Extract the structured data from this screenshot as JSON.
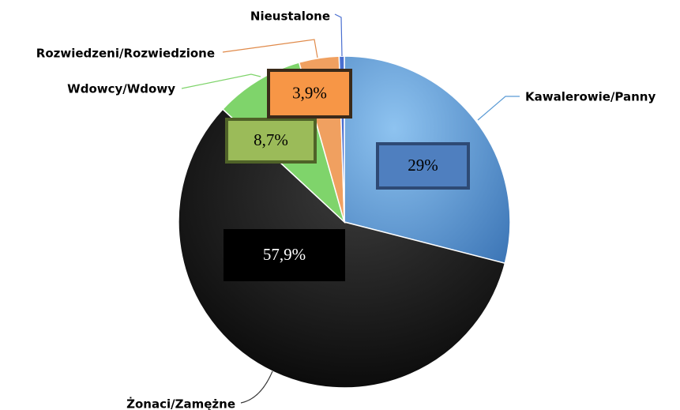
{
  "chart_data": {
    "type": "pie",
    "categories": [
      "Kawalerowie/Panny",
      "Żonaci/Zamężne",
      "Wdowcy/Wdowy",
      "Rozwiedzeni/Rozwiedzione",
      "Nieustalone"
    ],
    "values": [
      29,
      57.9,
      8.7,
      3.9,
      0.5
    ],
    "value_labels": [
      "29%",
      "57,9%",
      "8,7%",
      "3,9%",
      null
    ],
    "colors": [
      "#5b9bd5",
      "#1a1a1a",
      "#7fd46b",
      "#f0a060",
      "#4a6fd0"
    ]
  }
}
